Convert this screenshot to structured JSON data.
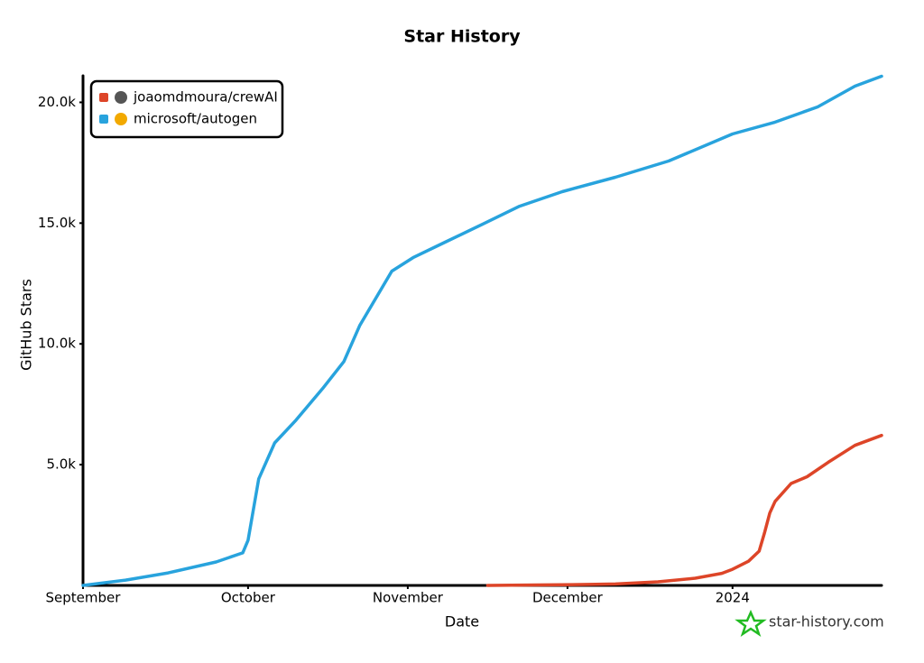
{
  "chart_data": {
    "type": "line",
    "title": "Star History",
    "xlabel": "Date",
    "ylabel": "GitHub Stars",
    "xlim": [
      0,
      150
    ],
    "xticks": [
      {
        "value": 0,
        "label": "September"
      },
      {
        "value": 31,
        "label": "October"
      },
      {
        "value": 61,
        "label": "November"
      },
      {
        "value": 91,
        "label": "December"
      },
      {
        "value": 122,
        "label": "2024"
      }
    ],
    "ylim": [
      0,
      21100
    ],
    "yticks": [
      {
        "value": 5000,
        "label": "5.0k"
      },
      {
        "value": 10000,
        "label": "10.0k"
      },
      {
        "value": 15000,
        "label": "15.0k"
      },
      {
        "value": 20000,
        "label": "20.0k"
      }
    ],
    "grid": false,
    "legend": "top-left",
    "series": [
      {
        "name": "joaomdmoura/crewAI",
        "color": "#dd4528",
        "x": [
          76,
          85,
          95,
          100,
          108,
          115,
          120,
          122,
          125,
          127,
          128,
          129,
          130,
          133,
          136,
          140,
          145,
          150
        ],
        "values": [
          0,
          20,
          40,
          60,
          150,
          300,
          500,
          670,
          1000,
          1420,
          2170,
          3000,
          3480,
          4220,
          4500,
          5100,
          5800,
          6210
        ]
      },
      {
        "name": "microsoft/autogen",
        "color": "#28a3dd",
        "x": [
          0,
          8,
          16,
          25,
          30,
          31,
          33,
          36,
          40,
          45,
          49,
          52,
          55,
          58,
          62,
          68,
          75,
          82,
          90,
          100,
          110,
          122,
          130,
          138,
          145,
          150
        ],
        "values": [
          0,
          220,
          520,
          970,
          1350,
          1870,
          4410,
          5900,
          6840,
          8150,
          9270,
          10770,
          11890,
          13010,
          13570,
          14210,
          14950,
          15700,
          16300,
          16900,
          17570,
          18690,
          19180,
          19810,
          20670,
          21080
        ]
      }
    ],
    "footer": "star-history.com"
  }
}
